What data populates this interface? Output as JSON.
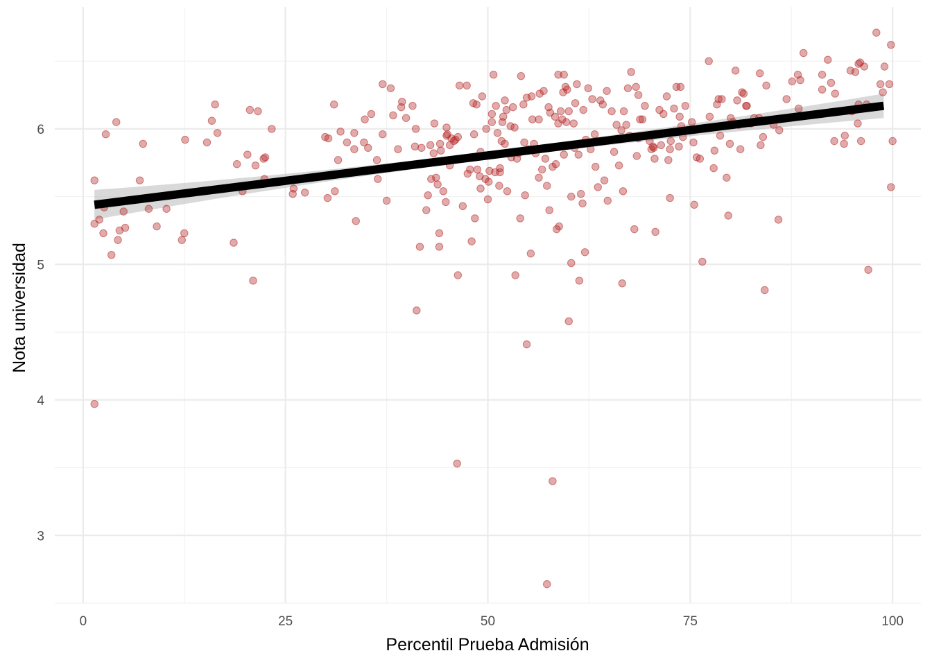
{
  "chart_data": {
    "type": "scatter",
    "title": "",
    "xlabel": "Percentil Prueba Admisión",
    "ylabel": "Nota universidad",
    "xlim": [
      -3.5,
      103.5
    ],
    "ylim": [
      2.5,
      6.9
    ],
    "x_ticks": [
      0,
      25,
      50,
      75,
      100
    ],
    "y_ticks": [
      3,
      4,
      5,
      6
    ],
    "x_tick_labels": [
      "0",
      "25",
      "50",
      "75",
      "100"
    ],
    "y_tick_labels": [
      "3",
      "4",
      "5",
      "6"
    ],
    "grid": true,
    "colors": {
      "point": "#b22222",
      "line": "#000000",
      "ribbon": "#bfbfbf"
    },
    "regression": {
      "method": "lm",
      "x_start": 1.4,
      "y_start": 5.44,
      "x_end": 98.9,
      "y_end": 6.17,
      "ci_halfwidth_start": 0.11,
      "ci_halfwidth_mid": 0.03,
      "ci_halfwidth_end": 0.09
    },
    "points": [
      [
        1.4,
        5.62
      ],
      [
        1.4,
        5.3
      ],
      [
        1.4,
        3.97
      ],
      [
        2.0,
        5.33
      ],
      [
        2.5,
        5.23
      ],
      [
        2.6,
        5.42
      ],
      [
        2.8,
        5.96
      ],
      [
        3.5,
        5.07
      ],
      [
        4.1,
        6.05
      ],
      [
        4.3,
        5.18
      ],
      [
        4.5,
        5.25
      ],
      [
        5.0,
        5.39
      ],
      [
        5.2,
        5.27
      ],
      [
        7.0,
        5.62
      ],
      [
        7.4,
        5.89
      ],
      [
        8.1,
        5.41
      ],
      [
        9.1,
        5.28
      ],
      [
        10.3,
        5.41
      ],
      [
        12.2,
        5.18
      ],
      [
        12.5,
        5.23
      ],
      [
        12.6,
        5.92
      ],
      [
        15.3,
        5.9
      ],
      [
        15.9,
        6.06
      ],
      [
        16.3,
        6.18
      ],
      [
        16.6,
        5.97
      ],
      [
        18.6,
        5.16
      ],
      [
        19.0,
        5.74
      ],
      [
        19.7,
        5.54
      ],
      [
        20.3,
        5.81
      ],
      [
        20.6,
        6.14
      ],
      [
        21.0,
        4.88
      ],
      [
        21.3,
        5.73
      ],
      [
        21.6,
        6.13
      ],
      [
        22.3,
        5.78
      ],
      [
        22.4,
        5.63
      ],
      [
        22.5,
        5.79
      ],
      [
        23.3,
        6.0
      ],
      [
        25.9,
        5.52
      ],
      [
        26.0,
        5.56
      ],
      [
        27.4,
        5.53
      ],
      [
        29.9,
        5.94
      ],
      [
        30.2,
        5.49
      ],
      [
        30.3,
        5.93
      ],
      [
        31.0,
        6.18
      ],
      [
        31.1,
        5.54
      ],
      [
        31.5,
        5.77
      ],
      [
        31.8,
        5.98
      ],
      [
        32.6,
        5.9
      ],
      [
        33.5,
        5.85
      ],
      [
        33.5,
        5.97
      ],
      [
        33.7,
        5.32
      ],
      [
        34.7,
        5.9
      ],
      [
        34.8,
        6.07
      ],
      [
        35.2,
        5.86
      ],
      [
        35.6,
        6.11
      ],
      [
        36.3,
        5.77
      ],
      [
        36.4,
        5.63
      ],
      [
        37.0,
        6.33
      ],
      [
        37.0,
        5.96
      ],
      [
        37.5,
        5.47
      ],
      [
        38.0,
        6.3
      ],
      [
        38.3,
        6.1
      ],
      [
        38.9,
        5.85
      ],
      [
        39.3,
        6.16
      ],
      [
        39.4,
        6.2
      ],
      [
        39.9,
        6.08
      ],
      [
        40.7,
        6.17
      ],
      [
        41.0,
        5.87
      ],
      [
        41.1,
        6.0
      ],
      [
        41.2,
        4.66
      ],
      [
        41.6,
        5.13
      ],
      [
        41.8,
        5.86
      ],
      [
        42.4,
        5.4
      ],
      [
        42.6,
        5.51
      ],
      [
        42.9,
        5.88
      ],
      [
        43.0,
        5.63
      ],
      [
        43.3,
        5.82
      ],
      [
        43.4,
        6.04
      ],
      [
        43.6,
        5.64
      ],
      [
        43.8,
        5.59
      ],
      [
        44.0,
        5.13
      ],
      [
        44.0,
        5.23
      ],
      [
        44.1,
        5.89
      ],
      [
        44.2,
        5.84
      ],
      [
        44.5,
        5.54
      ],
      [
        44.8,
        5.46
      ],
      [
        44.9,
        6.01
      ],
      [
        44.9,
        5.95
      ],
      [
        45.0,
        5.96
      ],
      [
        45.3,
        5.73
      ],
      [
        45.3,
        5.88
      ],
      [
        45.5,
        5.93
      ],
      [
        45.8,
        5.91
      ],
      [
        46.0,
        5.92
      ],
      [
        46.2,
        3.53
      ],
      [
        46.3,
        5.94
      ],
      [
        46.3,
        4.92
      ],
      [
        46.5,
        6.32
      ],
      [
        46.9,
        5.43
      ],
      [
        47.4,
        6.32
      ],
      [
        47.5,
        5.67
      ],
      [
        47.8,
        5.7
      ],
      [
        48.0,
        5.17
      ],
      [
        48.2,
        6.19
      ],
      [
        48.3,
        5.96
      ],
      [
        48.4,
        5.34
      ],
      [
        48.6,
        6.18
      ],
      [
        48.7,
        5.7
      ],
      [
        49.0,
        5.65
      ],
      [
        49.1,
        5.83
      ],
      [
        49.1,
        5.56
      ],
      [
        49.3,
        6.24
      ],
      [
        49.7,
        5.63
      ],
      [
        49.8,
        6.0
      ],
      [
        50.0,
        5.48
      ],
      [
        50.1,
        5.61
      ],
      [
        50.2,
        5.69
      ],
      [
        50.5,
        6.05
      ],
      [
        50.5,
        6.11
      ],
      [
        50.7,
        6.4
      ],
      [
        50.9,
        5.68
      ],
      [
        51.0,
        6.17
      ],
      [
        51.2,
        5.97
      ],
      [
        51.4,
        5.58
      ],
      [
        51.5,
        5.71
      ],
      [
        51.5,
        5.68
      ],
      [
        51.7,
        5.91
      ],
      [
        51.8,
        6.05
      ],
      [
        51.9,
        6.09
      ],
      [
        52.1,
        6.21
      ],
      [
        52.1,
        5.89
      ],
      [
        52.3,
        6.14
      ],
      [
        52.4,
        5.54
      ],
      [
        52.8,
        6.02
      ],
      [
        52.9,
        5.79
      ],
      [
        53.1,
        6.16
      ],
      [
        53.3,
        6.01
      ],
      [
        53.4,
        4.92
      ],
      [
        53.6,
        5.78
      ],
      [
        53.8,
        5.82
      ],
      [
        54.0,
        5.34
      ],
      [
        54.1,
        6.39
      ],
      [
        54.4,
        6.18
      ],
      [
        54.5,
        5.9
      ],
      [
        54.6,
        5.51
      ],
      [
        54.8,
        6.23
      ],
      [
        54.8,
        4.41
      ],
      [
        55.0,
        5.85
      ],
      [
        55.3,
        5.08
      ],
      [
        55.4,
        6.24
      ],
      [
        55.5,
        6.07
      ],
      [
        55.7,
        5.89
      ],
      [
        55.9,
        5.82
      ],
      [
        56.3,
        6.07
      ],
      [
        56.3,
        5.64
      ],
      [
        56.4,
        6.26
      ],
      [
        56.7,
        5.7
      ],
      [
        56.9,
        6.28
      ],
      [
        57.1,
        5.78
      ],
      [
        57.3,
        5.58
      ],
      [
        57.3,
        2.64
      ],
      [
        57.5,
        6.16
      ],
      [
        57.6,
        5.4
      ],
      [
        57.7,
        6.12
      ],
      [
        58.0,
        5.72
      ],
      [
        58.0,
        3.4
      ],
      [
        58.3,
        6.09
      ],
      [
        58.4,
        5.74
      ],
      [
        58.5,
        5.26
      ],
      [
        58.7,
        6.4
      ],
      [
        58.7,
        6.04
      ],
      [
        58.8,
        5.28
      ],
      [
        59.0,
        6.13
      ],
      [
        59.2,
        6.07
      ],
      [
        59.3,
        6.27
      ],
      [
        59.4,
        5.81
      ],
      [
        59.4,
        6.4
      ],
      [
        59.6,
        6.31
      ],
      [
        59.7,
        6.05
      ],
      [
        59.8,
        6.29
      ],
      [
        60.0,
        6.13
      ],
      [
        60.0,
        4.58
      ],
      [
        60.3,
        5.01
      ],
      [
        60.3,
        5.5
      ],
      [
        60.6,
        6.04
      ],
      [
        60.7,
        5.86
      ],
      [
        60.8,
        6.19
      ],
      [
        61.0,
        6.33
      ],
      [
        61.2,
        5.81
      ],
      [
        61.3,
        4.88
      ],
      [
        61.5,
        5.52
      ],
      [
        61.7,
        5.45
      ],
      [
        61.8,
        6.14
      ],
      [
        62.0,
        5.09
      ],
      [
        62.1,
        5.92
      ],
      [
        62.4,
        6.3
      ],
      [
        62.7,
        5.85
      ],
      [
        62.9,
        6.22
      ],
      [
        63.2,
        5.96
      ],
      [
        63.3,
        5.72
      ],
      [
        63.6,
        5.57
      ],
      [
        63.9,
        6.21
      ],
      [
        64.2,
        6.18
      ],
      [
        64.4,
        5.62
      ],
      [
        64.7,
        6.28
      ],
      [
        64.8,
        5.47
      ],
      [
        65.3,
        6.13
      ],
      [
        65.6,
        5.83
      ],
      [
        65.9,
        6.03
      ],
      [
        66.2,
        5.73
      ],
      [
        66.5,
        5.99
      ],
      [
        66.7,
        5.54
      ],
      [
        66.6,
        4.86
      ],
      [
        66.8,
        6.13
      ],
      [
        67.1,
        6.03
      ],
      [
        67.3,
        6.3
      ],
      [
        67.5,
        5.95
      ],
      [
        67.7,
        6.42
      ],
      [
        68.1,
        5.26
      ],
      [
        68.3,
        6.31
      ],
      [
        68.4,
        5.8
      ],
      [
        68.6,
        5.93
      ],
      [
        68.6,
        6.25
      ],
      [
        68.8,
        6.07
      ],
      [
        69.1,
        6.07
      ],
      [
        69.4,
        6.17
      ],
      [
        69.5,
        5.95
      ],
      [
        70.0,
        5.91
      ],
      [
        70.2,
        5.85
      ],
      [
        70.4,
        5.87
      ],
      [
        70.5,
        5.86
      ],
      [
        70.6,
        5.78
      ],
      [
        70.7,
        5.24
      ],
      [
        71.2,
        6.14
      ],
      [
        71.4,
        5.88
      ],
      [
        71.7,
        6.11
      ],
      [
        72.1,
        6.24
      ],
      [
        72.3,
        5.77
      ],
      [
        72.5,
        5.85
      ],
      [
        72.5,
        5.49
      ],
      [
        72.6,
        5.91
      ],
      [
        73.0,
        6.15
      ],
      [
        73.3,
        6.31
      ],
      [
        73.6,
        5.87
      ],
      [
        73.7,
        6.09
      ],
      [
        73.8,
        6.31
      ],
      [
        73.9,
        6.02
      ],
      [
        74.1,
        5.94
      ],
      [
        74.4,
        6.17
      ],
      [
        75.2,
        6.05
      ],
      [
        75.4,
        5.9
      ],
      [
        75.5,
        5.44
      ],
      [
        75.8,
        5.79
      ],
      [
        76.2,
        5.78
      ],
      [
        76.5,
        5.02
      ],
      [
        77.3,
        6.5
      ],
      [
        77.4,
        6.09
      ],
      [
        77.9,
        5.71
      ],
      [
        78.0,
        5.84
      ],
      [
        78.3,
        6.18
      ],
      [
        78.5,
        6.22
      ],
      [
        78.7,
        5.95
      ],
      [
        78.9,
        6.22
      ],
      [
        79.5,
        5.64
      ],
      [
        79.7,
        5.36
      ],
      [
        79.9,
        5.89
      ],
      [
        80.0,
        6.08
      ],
      [
        80.3,
        6.05
      ],
      [
        80.6,
        6.43
      ],
      [
        80.8,
        6.21
      ],
      [
        81.0,
        6.03
      ],
      [
        81.2,
        5.85
      ],
      [
        81.4,
        6.27
      ],
      [
        81.6,
        6.26
      ],
      [
        81.9,
        6.17
      ],
      [
        82.0,
        6.17
      ],
      [
        82.5,
        6.04
      ],
      [
        82.9,
        6.08
      ],
      [
        83.5,
        6.08
      ],
      [
        83.6,
        6.41
      ],
      [
        83.7,
        5.88
      ],
      [
        84.0,
        5.94
      ],
      [
        84.2,
        4.81
      ],
      [
        84.4,
        6.32
      ],
      [
        85.3,
        6.03
      ],
      [
        85.9,
        5.33
      ],
      [
        86.0,
        5.99
      ],
      [
        86.9,
        6.22
      ],
      [
        87.6,
        6.35
      ],
      [
        88.3,
        6.4
      ],
      [
        88.4,
        6.15
      ],
      [
        88.6,
        6.36
      ],
      [
        89.0,
        6.56
      ],
      [
        91.3,
        6.4
      ],
      [
        91.3,
        6.29
      ],
      [
        92.0,
        6.51
      ],
      [
        92.4,
        6.34
      ],
      [
        92.8,
        5.91
      ],
      [
        92.9,
        6.26
      ],
      [
        94.0,
        5.89
      ],
      [
        94.1,
        5.95
      ],
      [
        94.8,
        6.43
      ],
      [
        95.0,
        6.13
      ],
      [
        95.4,
        6.42
      ],
      [
        95.7,
        6.04
      ],
      [
        95.8,
        6.48
      ],
      [
        95.8,
        6.18
      ],
      [
        96.0,
        6.49
      ],
      [
        96.1,
        5.91
      ],
      [
        96.5,
        6.46
      ],
      [
        96.8,
        6.18
      ],
      [
        97.0,
        4.96
      ],
      [
        98.0,
        6.71
      ],
      [
        98.5,
        6.33
      ],
      [
        98.8,
        6.27
      ],
      [
        99.0,
        6.46
      ],
      [
        99.6,
        6.33
      ],
      [
        99.8,
        6.62
      ],
      [
        99.8,
        5.57
      ],
      [
        100.0,
        5.91
      ]
    ]
  }
}
